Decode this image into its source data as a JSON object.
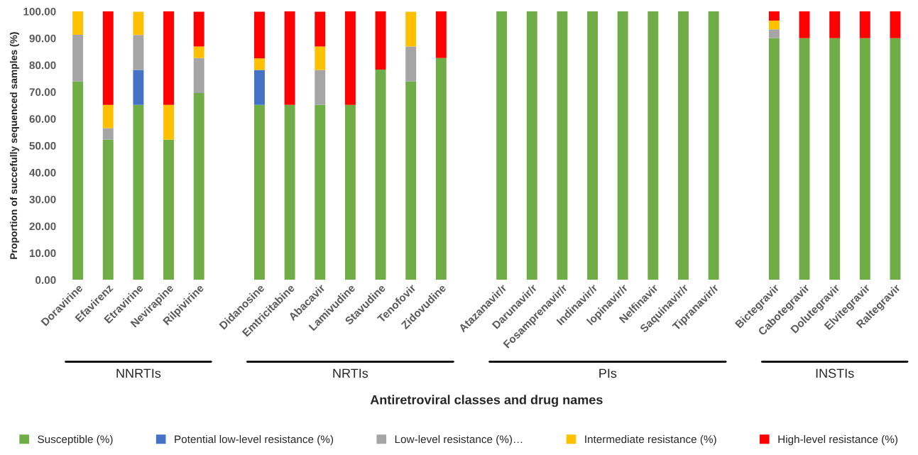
{
  "chart_data": {
    "type": "bar",
    "stacked": true,
    "ylabel": "Proportion of succefully sequenced samples (%)",
    "xlabel": "Antiretroviral classes and drug names",
    "categories": [
      "Doravirine",
      "Efavirenz",
      "Etravirine",
      "Nevirapine",
      "Rilpivirine",
      null,
      "Didanosine",
      "Emtricitabine",
      "Abacavir",
      "Lamivudine",
      "Stavudine",
      "Tenofovir",
      "Zidovudine",
      null,
      "Atazanavir/r",
      "Darunavir/r",
      "Fosamprenavir/r",
      "Indinavir/r",
      "lopinavir/r",
      "Nelfinavir",
      "Saquinavir/r",
      "Tipranavir/r",
      null,
      "Bictegravir",
      "Cabotegravir",
      "Dolutegravir",
      "Elvitegravir",
      "Raltegravir"
    ],
    "series": [
      {
        "name": "Susceptible (%)",
        "color": "#70ad47",
        "values": [
          73.9,
          52.2,
          65.2,
          52.2,
          69.6,
          null,
          65.2,
          65.2,
          65.2,
          65.2,
          78.3,
          73.9,
          82.6,
          null,
          100,
          100,
          100,
          100,
          100,
          100,
          100,
          100,
          null,
          90,
          90,
          90,
          90,
          90
        ]
      },
      {
        "name": "Potential low-level resistance (%)",
        "color": "#4472c4",
        "values": [
          0,
          0,
          13.0,
          0,
          0,
          null,
          13.0,
          0,
          0,
          0,
          0,
          0,
          0,
          null,
          0,
          0,
          0,
          0,
          0,
          0,
          0,
          0,
          null,
          0,
          0,
          0,
          0,
          0
        ]
      },
      {
        "name": "Low-level resistance (%)…",
        "color": "#a5a5a5",
        "values": [
          17.4,
          4.3,
          13.0,
          0,
          13.0,
          null,
          0,
          0,
          13.0,
          0,
          0,
          13.0,
          0,
          null,
          0,
          0,
          0,
          0,
          0,
          0,
          0,
          0,
          null,
          3.3,
          0,
          0,
          0,
          0
        ]
      },
      {
        "name": "Intermediate resistance (%)",
        "color": "#ffc000",
        "values": [
          8.7,
          8.7,
          8.7,
          13.0,
          4.3,
          null,
          4.3,
          0,
          8.7,
          0,
          0,
          13.0,
          0,
          null,
          0,
          0,
          0,
          0,
          0,
          0,
          0,
          0,
          null,
          3.3,
          0,
          0,
          0,
          0
        ]
      },
      {
        "name": "High-level resistance (%)",
        "color": "#ff0000",
        "values": [
          0,
          34.8,
          0,
          34.8,
          13.0,
          null,
          17.4,
          34.8,
          13.0,
          34.8,
          21.7,
          0,
          17.4,
          null,
          0,
          0,
          0,
          0,
          0,
          0,
          0,
          0,
          null,
          3.4,
          10,
          10,
          10,
          10
        ]
      }
    ],
    "ylim": [
      0,
      100
    ],
    "yticks": [
      {
        "value": 0,
        "label": "0.00"
      },
      {
        "value": 10,
        "label": "10.00"
      },
      {
        "value": 20,
        "label": "20.00"
      },
      {
        "value": 30,
        "label": "30.00"
      },
      {
        "value": 40,
        "label": "40.00"
      },
      {
        "value": 50,
        "label": "50.00"
      },
      {
        "value": 60,
        "label": "60.00"
      },
      {
        "value": 70,
        "label": "70.00"
      },
      {
        "value": 80,
        "label": "80.00"
      },
      {
        "value": 90,
        "label": "90.00"
      },
      {
        "value": 100,
        "label": "100.00"
      }
    ],
    "grid": false,
    "legend": "bottom",
    "annotations": [
      "NNRTIs",
      "NRTIs",
      "PIs",
      "INSTIs"
    ]
  }
}
